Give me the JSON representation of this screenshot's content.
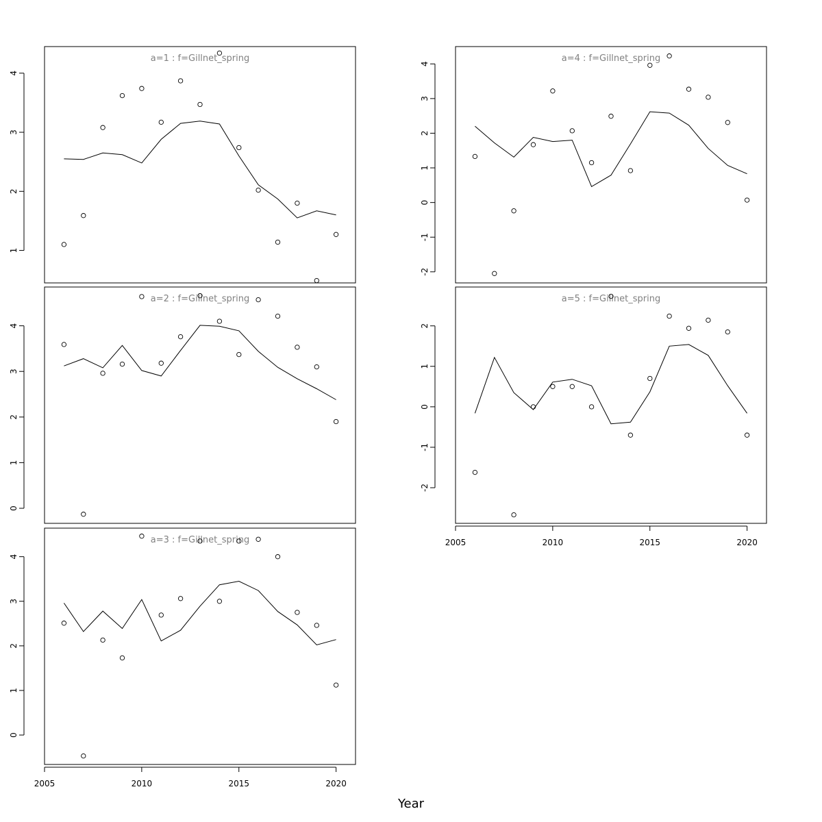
{
  "figure": {
    "xlabel": "Year"
  },
  "chart_data": [
    {
      "type": "line",
      "title": "a=1 : f=Gillnet_spring",
      "x": [
        2006,
        2007,
        2008,
        2009,
        2010,
        2011,
        2012,
        2013,
        2014,
        2015,
        2016,
        2017,
        2018,
        2019,
        2020
      ],
      "series": [
        {
          "type": "line",
          "values": [
            2.55,
            2.54,
            2.65,
            2.62,
            2.48,
            2.88,
            3.15,
            3.19,
            3.14,
            2.6,
            2.11,
            1.87,
            1.55,
            1.67,
            1.6
          ]
        },
        {
          "type": "scatter",
          "values": [
            1.1,
            1.59,
            3.08,
            3.62,
            3.74,
            3.17,
            3.87,
            3.47,
            4.34,
            2.74,
            2.02,
            1.14,
            1.8,
            0.49,
            1.27
          ]
        }
      ],
      "xlim": [
        2005,
        2021
      ],
      "ylim": [
        0.45,
        4.45
      ],
      "xticks": [
        2005,
        2010,
        2015,
        2020
      ],
      "yticks": [
        1,
        2,
        3,
        4
      ],
      "show_x_axis": false
    },
    {
      "type": "line",
      "title": "a=2 : f=Gillnet_spring",
      "x": [
        2006,
        2007,
        2008,
        2009,
        2010,
        2011,
        2012,
        2013,
        2014,
        2015,
        2016,
        2017,
        2018,
        2019,
        2020
      ],
      "series": [
        {
          "type": "line",
          "values": [
            3.12,
            3.28,
            3.08,
            3.57,
            3.02,
            2.9,
            3.46,
            4.01,
            3.99,
            3.89,
            3.44,
            3.09,
            2.84,
            2.62,
            2.38
          ]
        },
        {
          "type": "scatter",
          "values": [
            3.59,
            -0.13,
            2.96,
            3.16,
            4.64,
            3.18,
            3.76,
            4.66,
            4.1,
            3.37,
            4.57,
            4.21,
            3.53,
            3.1,
            1.9
          ]
        }
      ],
      "xlim": [
        2005,
        2021
      ],
      "ylim": [
        -0.33,
        4.85
      ],
      "xticks": [
        2005,
        2010,
        2015,
        2020
      ],
      "yticks": [
        0,
        1,
        2,
        3,
        4
      ],
      "show_x_axis": false
    },
    {
      "type": "line",
      "title": "a=3 : f=Gillnet_spring",
      "x": [
        2006,
        2007,
        2008,
        2009,
        2010,
        2011,
        2012,
        2013,
        2014,
        2015,
        2016,
        2017,
        2018,
        2019,
        2020
      ],
      "series": [
        {
          "type": "line",
          "values": [
            2.96,
            2.32,
            2.78,
            2.39,
            3.04,
            2.11,
            2.35,
            2.89,
            3.37,
            3.45,
            3.24,
            2.77,
            2.47,
            2.02,
            2.14
          ]
        },
        {
          "type": "scatter",
          "values": [
            2.51,
            -0.47,
            2.13,
            1.73,
            4.46,
            2.69,
            3.06,
            4.35,
            3.0,
            4.35,
            4.39,
            4.0,
            2.75,
            2.46,
            1.12
          ]
        }
      ],
      "xlim": [
        2005,
        2021
      ],
      "ylim": [
        -0.66,
        4.64
      ],
      "xticks": [
        2005,
        2010,
        2015,
        2020
      ],
      "yticks": [
        0,
        1,
        2,
        3,
        4
      ],
      "show_x_axis": true
    },
    {
      "type": "line",
      "title": "a=4 : f=Gillnet_spring",
      "x": [
        2006,
        2007,
        2008,
        2009,
        2010,
        2011,
        2012,
        2013,
        2014,
        2015,
        2016,
        2017,
        2018,
        2019,
        2020
      ],
      "series": [
        {
          "type": "line",
          "values": [
            2.2,
            1.72,
            1.31,
            1.88,
            1.76,
            1.8,
            0.46,
            0.79,
            1.69,
            2.62,
            2.58,
            2.23,
            1.56,
            1.07,
            0.83
          ]
        },
        {
          "type": "scatter",
          "values": [
            1.33,
            -2.05,
            -0.24,
            1.67,
            3.22,
            2.07,
            1.15,
            2.49,
            0.92,
            3.96,
            4.23,
            3.27,
            3.04,
            2.31,
            0.07
          ]
        }
      ],
      "xlim": [
        2005,
        2021
      ],
      "ylim": [
        -2.32,
        4.5
      ],
      "xticks": [
        2005,
        2010,
        2015,
        2020
      ],
      "yticks": [
        -2,
        -1,
        0,
        1,
        2,
        3,
        4
      ],
      "show_x_axis": false
    },
    {
      "type": "line",
      "title": "a=5 : f=Gillnet_spring",
      "x": [
        2006,
        2007,
        2008,
        2009,
        2010,
        2011,
        2012,
        2013,
        2014,
        2015,
        2016,
        2017,
        2018,
        2019,
        2020
      ],
      "series": [
        {
          "type": "line",
          "values": [
            -0.16,
            1.22,
            0.35,
            -0.07,
            0.61,
            0.68,
            0.52,
            -0.42,
            -0.38,
            0.37,
            1.5,
            1.54,
            1.27,
            0.52,
            -0.16
          ]
        },
        {
          "type": "scatter",
          "values": [
            -1.62,
            null,
            -2.67,
            0.0,
            0.5,
            0.5,
            0.0,
            2.73,
            -0.7,
            0.7,
            2.24,
            1.94,
            2.14,
            1.85,
            -0.7
          ]
        }
      ],
      "xlim": [
        2005,
        2021
      ],
      "ylim": [
        -2.88,
        2.96
      ],
      "xticks": [
        2005,
        2010,
        2015,
        2020
      ],
      "yticks": [
        -2,
        -1,
        0,
        1,
        2
      ],
      "show_x_axis": true
    }
  ]
}
